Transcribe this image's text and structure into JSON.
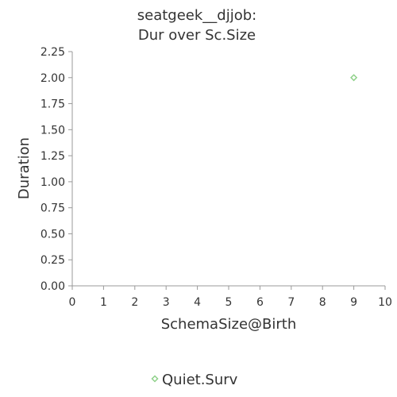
{
  "chart_data": {
    "type": "scatter",
    "title": [
      "seatgeek__djjob:",
      "Dur over Sc.Size"
    ],
    "xlabel": "SchemaSize@Birth",
    "ylabel": "Duration",
    "xlim": [
      0,
      10
    ],
    "ylim": [
      0,
      2.25
    ],
    "x_ticks": [
      "0",
      "1",
      "2",
      "3",
      "4",
      "5",
      "6",
      "7",
      "8",
      "9",
      "10"
    ],
    "y_ticks": [
      "0.00",
      "0.25",
      "0.50",
      "0.75",
      "1.00",
      "1.25",
      "1.50",
      "1.75",
      "2.00",
      "2.25"
    ],
    "grid": false,
    "legend_position": "bottom",
    "series": [
      {
        "name": "Quiet.Surv",
        "marker": "diamond",
        "color": "#8fd18a",
        "points": [
          {
            "x": 9,
            "y": 2.0
          }
        ]
      }
    ]
  }
}
